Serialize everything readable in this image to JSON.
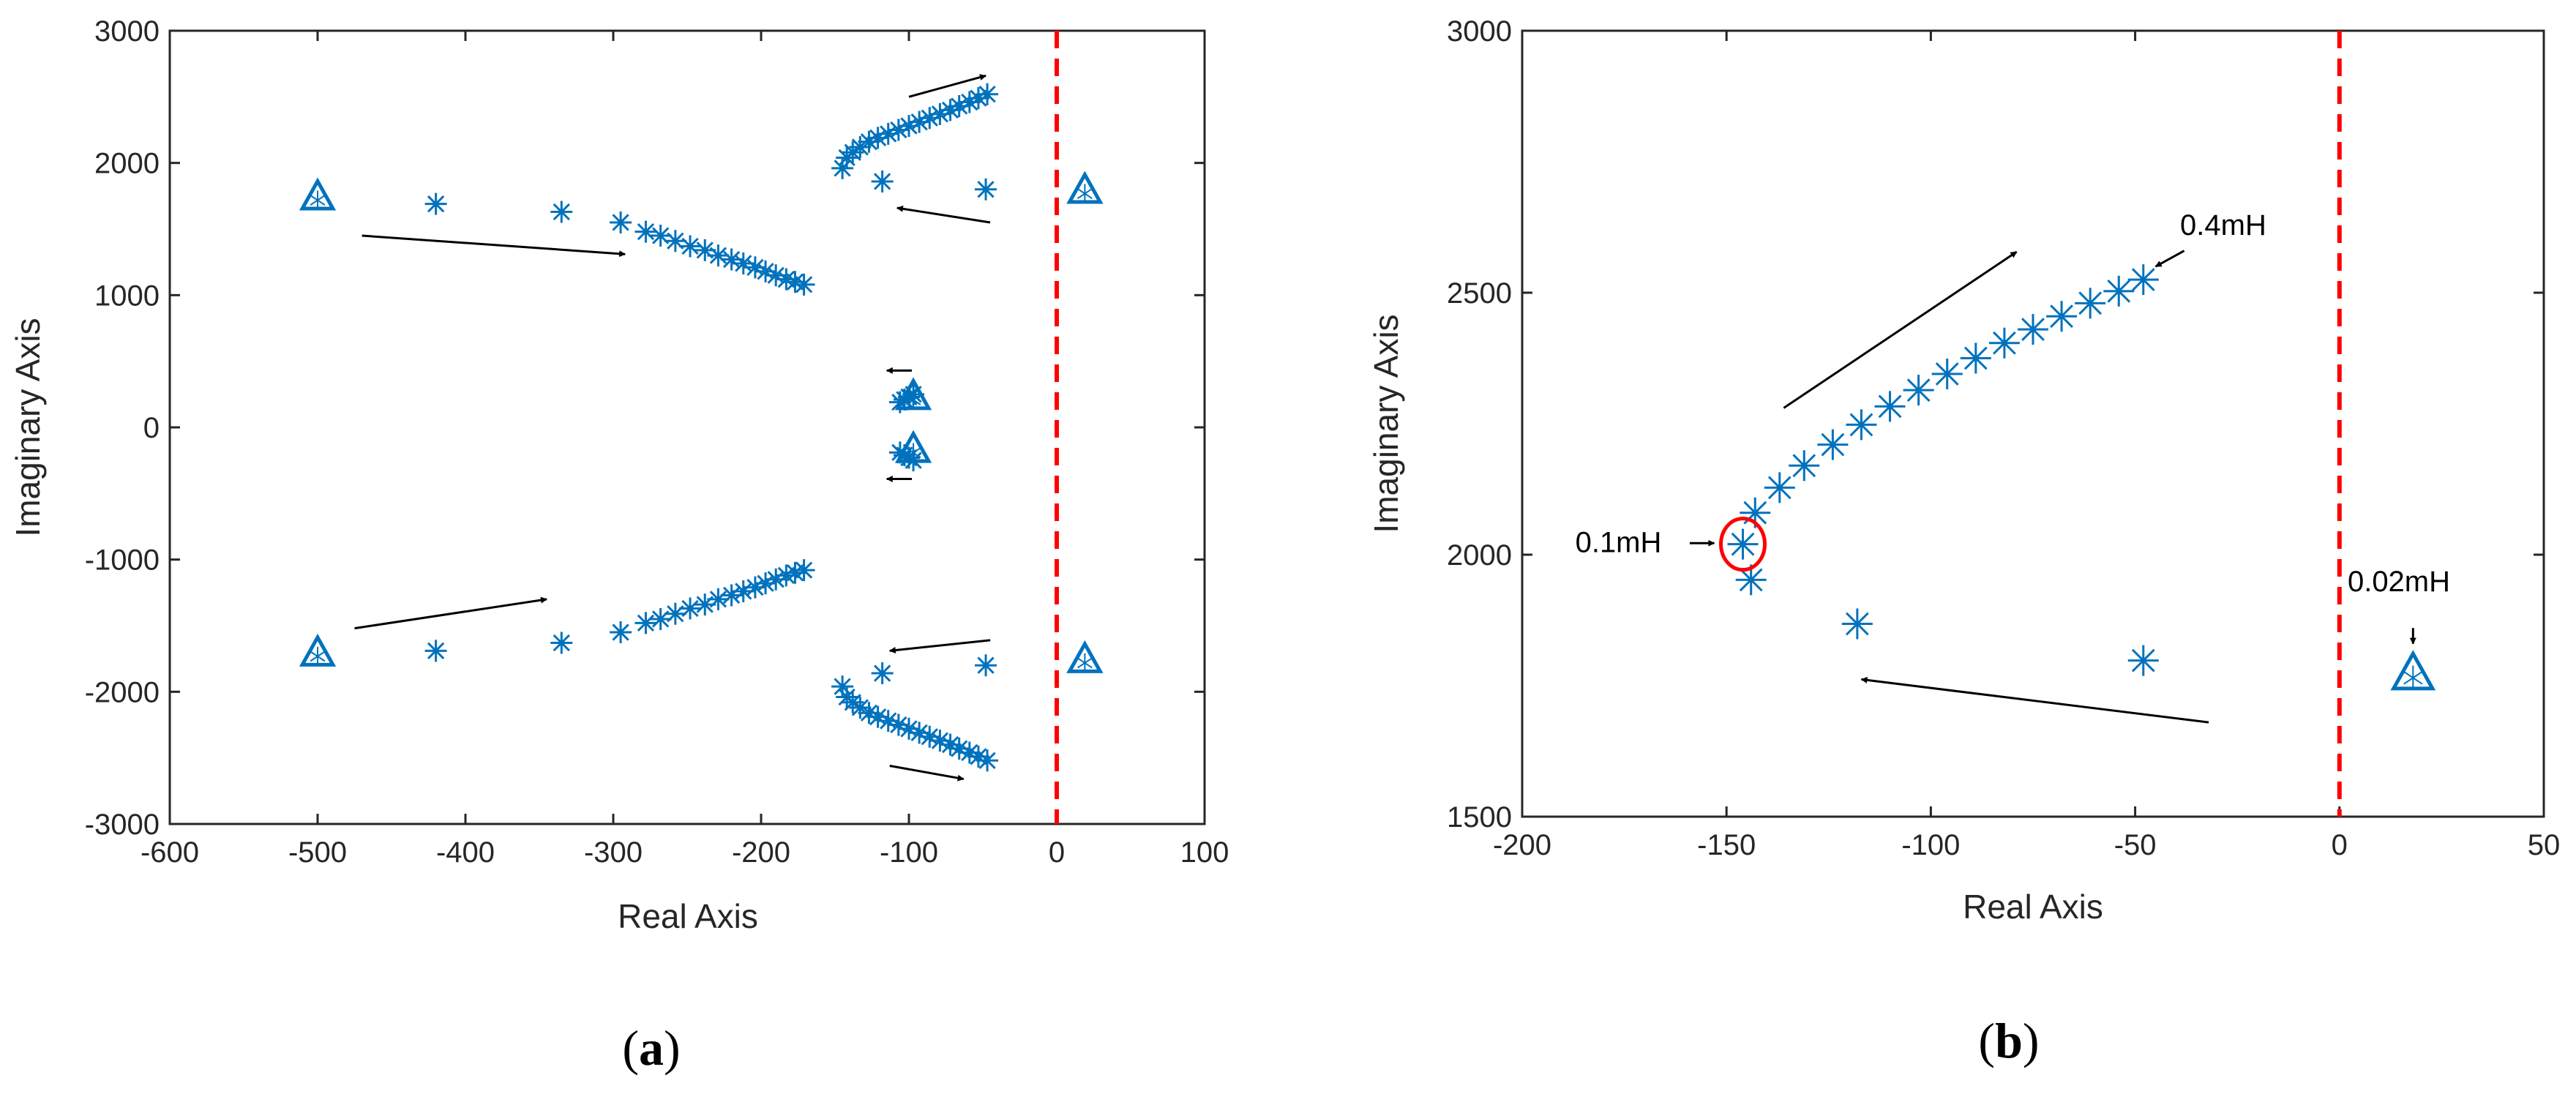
{
  "colors": {
    "marker": "#0072BD",
    "stability_boundary": "#FF0000",
    "arrow": "#000000",
    "axes": "#262626",
    "highlight": "#FF0000"
  },
  "chart_data": [
    {
      "type": "scatter",
      "panel_label_open": "(",
      "panel_label_letter": "a",
      "panel_label_close": ")",
      "xlabel": "Real Axis",
      "ylabel": "Imaginary Axis",
      "xlim": [
        -600,
        100
      ],
      "ylim": [
        -3000,
        3000
      ],
      "xticks": [
        -600,
        -500,
        -400,
        -300,
        -200,
        -100,
        0,
        100
      ],
      "yticks": [
        -3000,
        -2000,
        -1000,
        0,
        1000,
        2000,
        3000
      ],
      "grid": false,
      "legend": "none",
      "stability_boundary_x": 0,
      "series": [
        {
          "marker": "asterisk",
          "points": [
            [
              -420,
              1690
            ],
            [
              -335,
              1630
            ],
            [
              -295,
              1550
            ],
            [
              -278,
              1480
            ],
            [
              -268,
              1450
            ],
            [
              -258,
              1410
            ],
            [
              -248,
              1370
            ],
            [
              -238,
              1340
            ],
            [
              -229,
              1300
            ],
            [
              -220,
              1270
            ],
            [
              -212,
              1240
            ],
            [
              -204,
              1210
            ],
            [
              -197,
              1180
            ],
            [
              -190,
              1150
            ],
            [
              -183,
              1120
            ],
            [
              -177,
              1100
            ],
            [
              -171,
              1080
            ],
            [
              -145,
              1960
            ],
            [
              -142,
              2040
            ],
            [
              -138,
              2080
            ],
            [
              -133,
              2120
            ],
            [
              -127,
              2160
            ],
            [
              -121,
              2190
            ],
            [
              -114,
              2220
            ],
            [
              -107,
              2250
            ],
            [
              -100,
              2280
            ],
            [
              -93,
              2310
            ],
            [
              -86,
              2340
            ],
            [
              -79,
              2370
            ],
            [
              -72,
              2400
            ],
            [
              -66,
              2430
            ],
            [
              -59,
              2460
            ],
            [
              -53,
              2490
            ],
            [
              -47,
              2520
            ],
            [
              -118,
              1860
            ],
            [
              -48,
              1800
            ],
            [
              -106,
              190
            ],
            [
              -103,
              210
            ],
            [
              -100,
              230
            ],
            [
              -97,
              250
            ],
            [
              -106,
              -190
            ],
            [
              -103,
              -210
            ],
            [
              -100,
              -230
            ],
            [
              -97,
              -250
            ],
            [
              -420,
              -1690
            ],
            [
              -335,
              -1630
            ],
            [
              -295,
              -1550
            ],
            [
              -278,
              -1480
            ],
            [
              -268,
              -1450
            ],
            [
              -258,
              -1410
            ],
            [
              -248,
              -1370
            ],
            [
              -238,
              -1340
            ],
            [
              -229,
              -1300
            ],
            [
              -220,
              -1270
            ],
            [
              -212,
              -1240
            ],
            [
              -204,
              -1210
            ],
            [
              -197,
              -1180
            ],
            [
              -190,
              -1150
            ],
            [
              -183,
              -1120
            ],
            [
              -177,
              -1100
            ],
            [
              -171,
              -1080
            ],
            [
              -145,
              -1960
            ],
            [
              -142,
              -2040
            ],
            [
              -138,
              -2080
            ],
            [
              -133,
              -2120
            ],
            [
              -127,
              -2160
            ],
            [
              -121,
              -2190
            ],
            [
              -114,
              -2220
            ],
            [
              -107,
              -2250
            ],
            [
              -100,
              -2280
            ],
            [
              -93,
              -2310
            ],
            [
              -86,
              -2340
            ],
            [
              -79,
              -2370
            ],
            [
              -72,
              -2400
            ],
            [
              -66,
              -2430
            ],
            [
              -59,
              -2460
            ],
            [
              -53,
              -2490
            ],
            [
              -47,
              -2520
            ],
            [
              -118,
              -1860
            ],
            [
              -48,
              -1800
            ]
          ]
        },
        {
          "marker": "triangle",
          "points": [
            [
              -500,
              1740
            ],
            [
              -500,
              -1710
            ],
            [
              19,
              1790
            ],
            [
              19,
              -1760
            ],
            [
              -97,
              230
            ],
            [
              -97,
              -170
            ]
          ]
        }
      ],
      "arrows": [
        {
          "from": [
            -470,
            1450
          ],
          "to": [
            -292,
            1310
          ]
        },
        {
          "from": [
            -45,
            1550
          ],
          "to": [
            -108,
            1660
          ]
        },
        {
          "from": [
            -100,
            2500
          ],
          "to": [
            -48,
            2660
          ]
        },
        {
          "from": [
            -98,
            430
          ],
          "to": [
            -115,
            430
          ]
        },
        {
          "from": [
            -98,
            -390
          ],
          "to": [
            -115,
            -390
          ]
        },
        {
          "from": [
            -475,
            -1520
          ],
          "to": [
            -345,
            -1300
          ]
        },
        {
          "from": [
            -45,
            -1610
          ],
          "to": [
            -113,
            -1690
          ]
        },
        {
          "from": [
            -113,
            -2560
          ],
          "to": [
            -63,
            -2660
          ]
        }
      ]
    },
    {
      "type": "scatter",
      "panel_label_open": "(",
      "panel_label_letter": "b",
      "panel_label_close": ")",
      "xlabel": "Real Axis",
      "ylabel": "Imaginary Axis",
      "xlim": [
        -200,
        50
      ],
      "ylim": [
        1500,
        3000
      ],
      "xticks": [
        -200,
        -150,
        -100,
        -50,
        0,
        50
      ],
      "yticks": [
        1500,
        2000,
        2500,
        3000
      ],
      "grid": false,
      "legend": "none",
      "stability_boundary_x": 0,
      "series": [
        {
          "marker": "asterisk",
          "points": [
            [
              -146,
              2020
            ],
            [
              -144,
              1952
            ],
            [
              -143,
              2080
            ],
            [
              -137,
              2128
            ],
            [
              -131,
              2170
            ],
            [
              -124,
              2210
            ],
            [
              -117,
              2248
            ],
            [
              -110,
              2283
            ],
            [
              -103,
              2314
            ],
            [
              -96,
              2345
            ],
            [
              -89,
              2375
            ],
            [
              -82,
              2404
            ],
            [
              -75,
              2430
            ],
            [
              -68,
              2455
            ],
            [
              -61,
              2480
            ],
            [
              -54,
              2503
            ],
            [
              -48,
              2525
            ],
            [
              -118,
              1868
            ],
            [
              -48,
              1798
            ]
          ]
        },
        {
          "marker": "triangle",
          "points": [
            [
              18,
              1772
            ]
          ]
        }
      ],
      "highlight": {
        "x": -146,
        "y": 2020
      },
      "arrows": [
        {
          "from": [
            -136,
            2280
          ],
          "to": [
            -79,
            2578
          ]
        },
        {
          "from": [
            -32,
            1680
          ],
          "to": [
            -117,
            1762
          ]
        },
        {
          "from": [
            -159,
            2022
          ],
          "to": [
            -153,
            2022
          ]
        },
        {
          "from": [
            -38,
            2580
          ],
          "to": [
            -45,
            2550
          ]
        },
        {
          "from": [
            18,
            1860
          ],
          "to": [
            18,
            1830
          ]
        }
      ],
      "annotations": [
        {
          "text": "0.4mH",
          "x": -39,
          "y": 2610
        },
        {
          "text": "0.1mH",
          "x": -187,
          "y": 2005
        },
        {
          "text": "0.02mH",
          "x": 2,
          "y": 1930
        }
      ]
    }
  ]
}
